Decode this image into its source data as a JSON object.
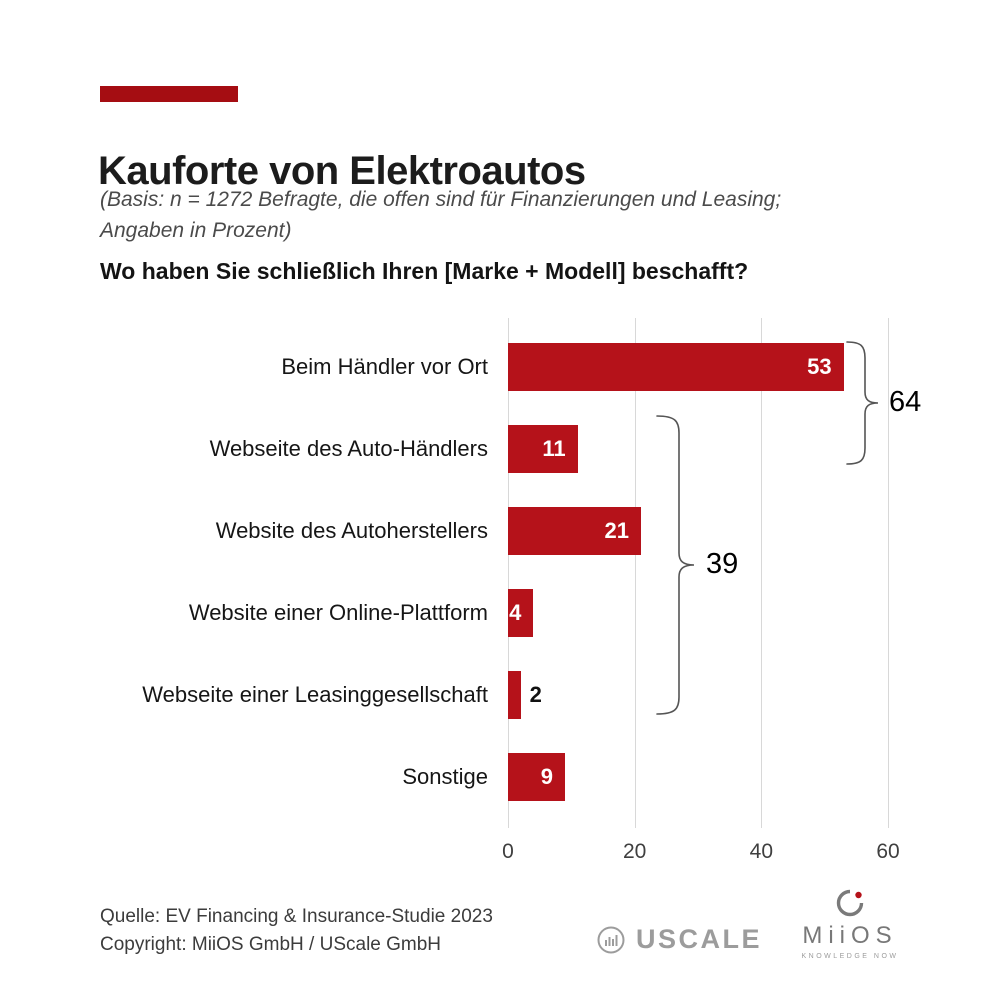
{
  "colors": {
    "accent": "#a50d12",
    "bar": "#b5121a",
    "grid": "#d8d8d8",
    "logo_gray": "#9c9c9c"
  },
  "header": {
    "title": "Kauforte von Elektroautos",
    "subtitle_lines": [
      "(Basis: n = 1272 Befragte, die offen sind für Finanzierungen und Leasing;",
      "Angaben in Prozent)"
    ],
    "question": "Wo haben Sie schließlich Ihren [Marke + Modell] beschafft?"
  },
  "chart_data": {
    "type": "bar",
    "orientation": "horizontal",
    "title": "Kauforte von Elektroautos",
    "categories": [
      "Beim Händler vor Ort",
      "Webseite des Auto-Händlers",
      "Website des Autoherstellers",
      "Website einer Online-Plattform",
      "Webseite einer Leasinggesellschaft",
      "Sonstige"
    ],
    "values": [
      53,
      11,
      21,
      4,
      2,
      9
    ],
    "unit": "Prozent",
    "xlim": [
      0,
      60
    ],
    "x_ticks": [
      0,
      20,
      40,
      60
    ],
    "grid": true,
    "legend": false,
    "annotations": [
      {
        "label": "64",
        "group": [
          "Beim Händler vor Ort",
          "Webseite des Auto-Händlers"
        ],
        "sum_of": [
          53,
          11
        ]
      },
      {
        "label": "39",
        "group": [
          "Webseite des Auto-Händlers",
          "Website des Autoherstellers",
          "Website einer Online-Plattform",
          "Webseite einer Leasinggesellschaft"
        ],
        "sum_of": [
          11,
          21,
          4,
          2
        ]
      }
    ]
  },
  "footer": {
    "source": "Quelle: EV Financing & Insurance-Studie 2023",
    "copyright": "Copyright: MiiOS GmbH / UScale GmbH"
  },
  "logos": {
    "uscale": "USCALE",
    "miios": "MiiOS",
    "miios_sub": "KNOWLEDGE NOW"
  }
}
